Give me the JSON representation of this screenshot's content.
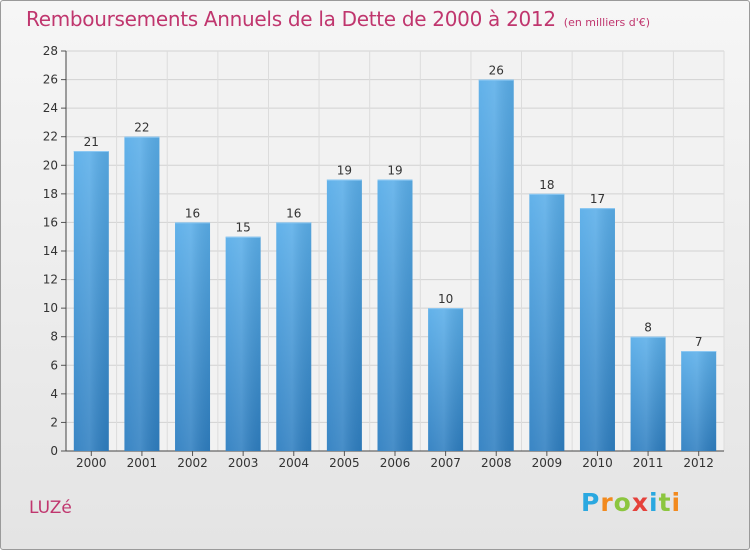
{
  "title": "Remboursements Annuels de la Dette de 2000 à 2012",
  "subtitle": "(en milliers d'€)",
  "commune": "LUZé",
  "logo": {
    "text": "Proxiti",
    "letters": [
      "P",
      "r",
      "o",
      "x",
      "i",
      "t",
      "i"
    ]
  },
  "colors": {
    "title": "#c0366e",
    "bar_top": "#5aaee9",
    "bar_bottom": "#2f7fc1"
  },
  "chart_data": {
    "type": "bar",
    "categories": [
      "2000",
      "2001",
      "2002",
      "2003",
      "2004",
      "2005",
      "2006",
      "2007",
      "2008",
      "2009",
      "2010",
      "2011",
      "2012"
    ],
    "values": [
      21,
      22,
      16,
      15,
      16,
      19,
      19,
      10,
      26,
      18,
      17,
      8,
      7
    ],
    "ylim": [
      0,
      28
    ],
    "yticks": [
      0,
      2,
      4,
      6,
      8,
      10,
      12,
      14,
      16,
      18,
      20,
      22,
      24,
      26,
      28
    ],
    "grid": true,
    "data_labels": true
  }
}
